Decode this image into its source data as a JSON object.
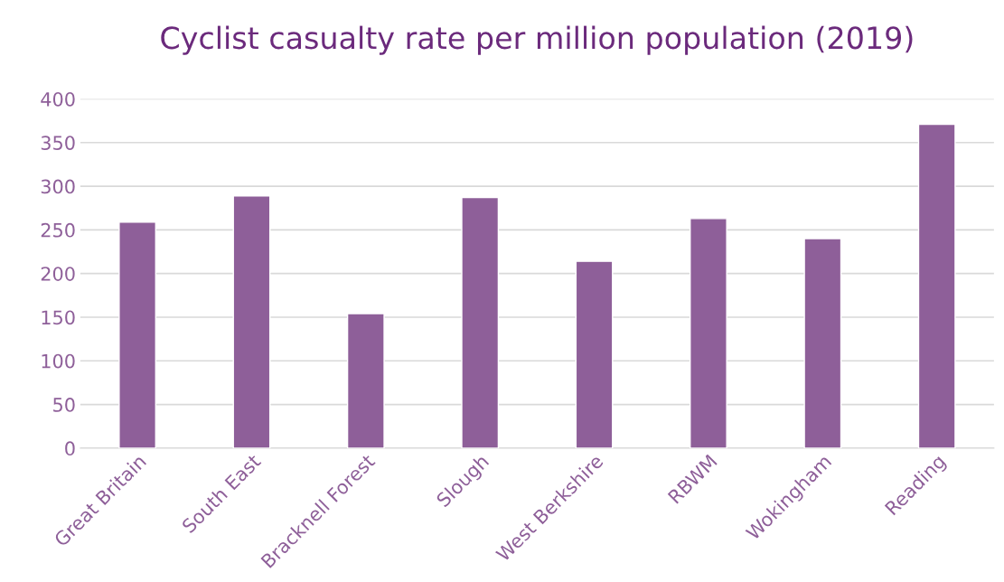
{
  "chart_data": {
    "type": "bar",
    "title": "Cyclist casualty rate per million population (2019)",
    "categories": [
      "Great Britain",
      "South East",
      "Bracknell Forest",
      "Slough",
      "West Berkshire",
      "RBWM",
      "Wokingham",
      "Reading"
    ],
    "values": [
      259,
      289,
      154,
      287,
      214,
      263,
      240,
      371
    ],
    "color": "#8e5f99",
    "ylim": [
      0,
      400
    ],
    "yticks": [
      0,
      50,
      100,
      150,
      200,
      250,
      300,
      350,
      400
    ],
    "grid": "y"
  }
}
